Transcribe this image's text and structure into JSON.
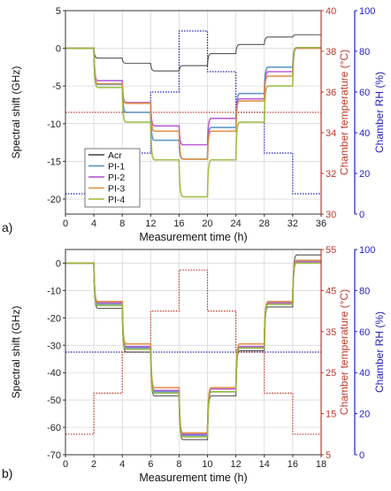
{
  "chart_data": [
    {
      "type": "line",
      "panel_label": "a)",
      "xlabel": "Measurement time (h)",
      "ylabel": "Spectral shift (GHz)",
      "y2label": "Chamber temperature (°C)",
      "y3label": "Chamber RH (%)",
      "xlim": [
        0,
        36
      ],
      "ylim": [
        -22,
        5
      ],
      "y2lim": [
        30,
        40
      ],
      "y3lim": [
        0,
        100
      ],
      "xticks": [
        0,
        4,
        8,
        12,
        16,
        20,
        24,
        28,
        32,
        36
      ],
      "yticks": [
        5,
        0,
        -5,
        -10,
        -15,
        -20
      ],
      "y2ticks": [
        30,
        32,
        34,
        36,
        38,
        40
      ],
      "y3ticks": [
        0,
        20,
        40,
        60,
        80,
        100
      ],
      "grid": true,
      "legend": {
        "placement": "bottom-left",
        "entries": [
          "Acr",
          "PI-1",
          "PI-2",
          "PI-3",
          "PI-4"
        ]
      },
      "colors": {
        "Acr": "#404040",
        "PI-1": "#4f8fbf",
        "PI-2": "#b04fd0",
        "PI-3": "#e08a3a",
        "PI-4": "#98b83a",
        "temperature": "#c0392b",
        "rh": "#1f1fbf"
      },
      "x_breaks": [
        0,
        4,
        8,
        12,
        16,
        20,
        24,
        28,
        32,
        36
      ],
      "series": [
        {
          "name": "Acr",
          "values": [
            0,
            -1.3,
            -2,
            -3,
            -2.3,
            -0.7,
            0.5,
            1.5,
            1.8
          ]
        },
        {
          "name": "PI-1",
          "values": [
            0,
            -4.8,
            -8.5,
            -12.2,
            -14.7,
            -10.5,
            -6,
            -2.5,
            0
          ]
        },
        {
          "name": "PI-2",
          "values": [
            0,
            -4.3,
            -7.2,
            -10.3,
            -12.8,
            -9.3,
            -6.7,
            -3.1,
            0.1
          ]
        },
        {
          "name": "PI-3",
          "values": [
            0,
            -4.7,
            -7.3,
            -11,
            -14.7,
            -11,
            -7,
            -3.7,
            0
          ]
        },
        {
          "name": "PI-4",
          "values": [
            0,
            -5.2,
            -9.8,
            -14.8,
            -19.7,
            -14.8,
            -9.8,
            -5,
            0.1
          ]
        }
      ],
      "temperature_steps": [
        35,
        35,
        35,
        35,
        35,
        35,
        35,
        35,
        35
      ],
      "rh_steps": [
        10,
        20,
        30,
        60,
        90,
        70,
        50,
        30,
        10
      ]
    },
    {
      "type": "line",
      "panel_label": "b)",
      "xlabel": "Measurement time (h)",
      "ylabel": "Spectral shift (GHz)",
      "y2label": "Chamber temperature (°C)",
      "y3label": "Chamber RH (%)",
      "xlim": [
        0,
        18
      ],
      "ylim": [
        -70,
        5
      ],
      "y2lim": [
        5,
        55
      ],
      "y3lim": [
        0,
        100
      ],
      "xticks": [
        0,
        2,
        4,
        6,
        8,
        10,
        12,
        14,
        16,
        18
      ],
      "yticks": [
        0,
        -10,
        -20,
        -30,
        -40,
        -50,
        -60,
        -70
      ],
      "y2ticks": [
        5,
        15,
        25,
        35,
        45,
        55
      ],
      "y3ticks": [
        0,
        20,
        40,
        60,
        80,
        100
      ],
      "grid": true,
      "x_breaks": [
        0,
        2,
        4,
        6,
        8,
        10,
        12,
        14,
        16,
        18
      ],
      "series": [
        {
          "name": "Acr",
          "values": [
            0,
            -16.5,
            -32.5,
            -48.5,
            -64.5,
            -48.5,
            -32,
            -16,
            3
          ]
        },
        {
          "name": "PI-1",
          "values": [
            0,
            -15,
            -31,
            -47,
            -63,
            -47,
            -31,
            -15,
            1
          ]
        },
        {
          "name": "PI-2",
          "values": [
            0,
            -14.5,
            -30.5,
            -46.5,
            -62.5,
            -46,
            -30.5,
            -14.5,
            0.5
          ]
        },
        {
          "name": "PI-3",
          "values": [
            0,
            -14,
            -29.5,
            -45.5,
            -62,
            -45.5,
            -29.5,
            -14,
            1
          ]
        },
        {
          "name": "PI-4",
          "values": [
            0,
            -15.5,
            -31.5,
            -47.5,
            -63.5,
            -47,
            -31,
            -15,
            0
          ]
        }
      ],
      "temperature_steps": [
        10,
        20,
        30,
        40,
        50,
        40,
        30,
        20,
        10
      ],
      "rh_steps": [
        50,
        50,
        50,
        50,
        50,
        50,
        50,
        50,
        50
      ]
    }
  ]
}
